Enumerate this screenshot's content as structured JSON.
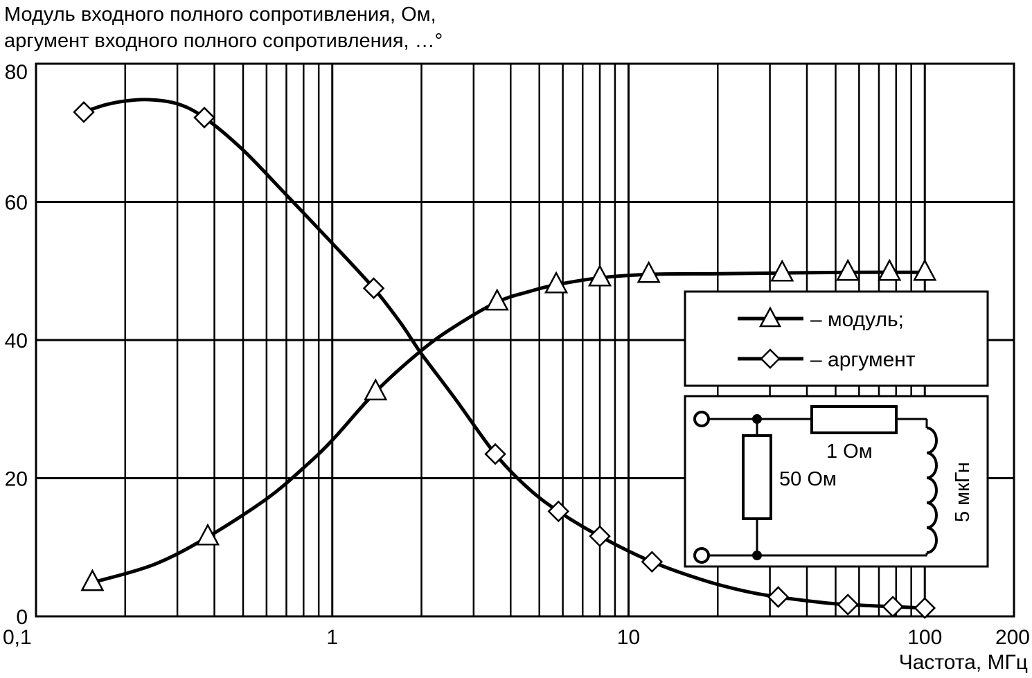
{
  "chart_data": {
    "type": "line",
    "title_lines": [
      "Модуль входного полного сопротивления, Ом,",
      "аргумент входного полного сопротивления, …°"
    ],
    "xlabel": "Частота, МГц",
    "x_scale": "log",
    "xlim": [
      0.1,
      200
    ],
    "ylim": [
      0,
      80
    ],
    "grid": true,
    "x_ticks": [
      {
        "value": 0.1,
        "label": "0,1"
      },
      {
        "value": 1,
        "label": "1"
      },
      {
        "value": 10,
        "label": "10"
      },
      {
        "value": 100,
        "label": "100"
      },
      {
        "value": 200,
        "label": "200"
      }
    ],
    "y_ticks": [
      {
        "value": 0,
        "label": "0"
      },
      {
        "value": 20,
        "label": "20"
      },
      {
        "value": 40,
        "label": "40"
      },
      {
        "value": 60,
        "label": "60"
      },
      {
        "value": 80,
        "label": "80"
      }
    ],
    "series": [
      {
        "name": "– модуль;",
        "marker": "triangle",
        "x": [
          0.155,
          0.38,
          1.4,
          3.6,
          5.7,
          8.0,
          11.7,
          33,
          55,
          76,
          100
        ],
        "y": [
          4.9,
          11.5,
          32.5,
          45.5,
          48.0,
          49.0,
          49.5,
          49.7,
          49.8,
          49.8,
          49.8
        ],
        "curve": [
          [
            0.155,
            4.9
          ],
          [
            0.25,
            7.5
          ],
          [
            0.38,
            11.5
          ],
          [
            0.6,
            17
          ],
          [
            0.8,
            21.5
          ],
          [
            1.0,
            25.5
          ],
          [
            1.4,
            32.5
          ],
          [
            2.0,
            38.5
          ],
          [
            2.6,
            42
          ],
          [
            3.6,
            45.5
          ],
          [
            4.6,
            47
          ],
          [
            5.7,
            48
          ],
          [
            8.0,
            49
          ],
          [
            11.7,
            49.5
          ],
          [
            20,
            49.6
          ],
          [
            33,
            49.7
          ],
          [
            55,
            49.8
          ],
          [
            100,
            49.8
          ]
        ]
      },
      {
        "name": "– аргумент",
        "marker": "diamond",
        "x": [
          0.145,
          0.37,
          1.38,
          3.55,
          5.8,
          8.0,
          12.0,
          32,
          55,
          78,
          100
        ],
        "y": [
          73.0,
          72.2,
          47.5,
          23.5,
          15.2,
          11.6,
          7.9,
          2.8,
          1.7,
          1.4,
          1.2
        ],
        "curve": [
          [
            0.145,
            73
          ],
          [
            0.17,
            74
          ],
          [
            0.2,
            74.6
          ],
          [
            0.24,
            74.8
          ],
          [
            0.3,
            74.2
          ],
          [
            0.37,
            72.2
          ],
          [
            0.5,
            67.5
          ],
          [
            0.7,
            61
          ],
          [
            1.0,
            54
          ],
          [
            1.38,
            47.5
          ],
          [
            1.7,
            42.5
          ],
          [
            2.0,
            38
          ],
          [
            2.6,
            31.5
          ],
          [
            3.55,
            23.5
          ],
          [
            4.6,
            18.5
          ],
          [
            5.8,
            15.2
          ],
          [
            8.0,
            11.6
          ],
          [
            12.0,
            7.9
          ],
          [
            18,
            5.2
          ],
          [
            25,
            3.6
          ],
          [
            32,
            2.8
          ],
          [
            45,
            2.0
          ],
          [
            55,
            1.7
          ],
          [
            78,
            1.4
          ],
          [
            100,
            1.2
          ]
        ]
      }
    ],
    "legend": {
      "position": "right",
      "entries": [
        "– модуль;",
        "– аргумент"
      ]
    },
    "inset_schematic": {
      "labels": [
        "1 Ом",
        "50 Ом",
        "5 мкГн"
      ]
    }
  }
}
